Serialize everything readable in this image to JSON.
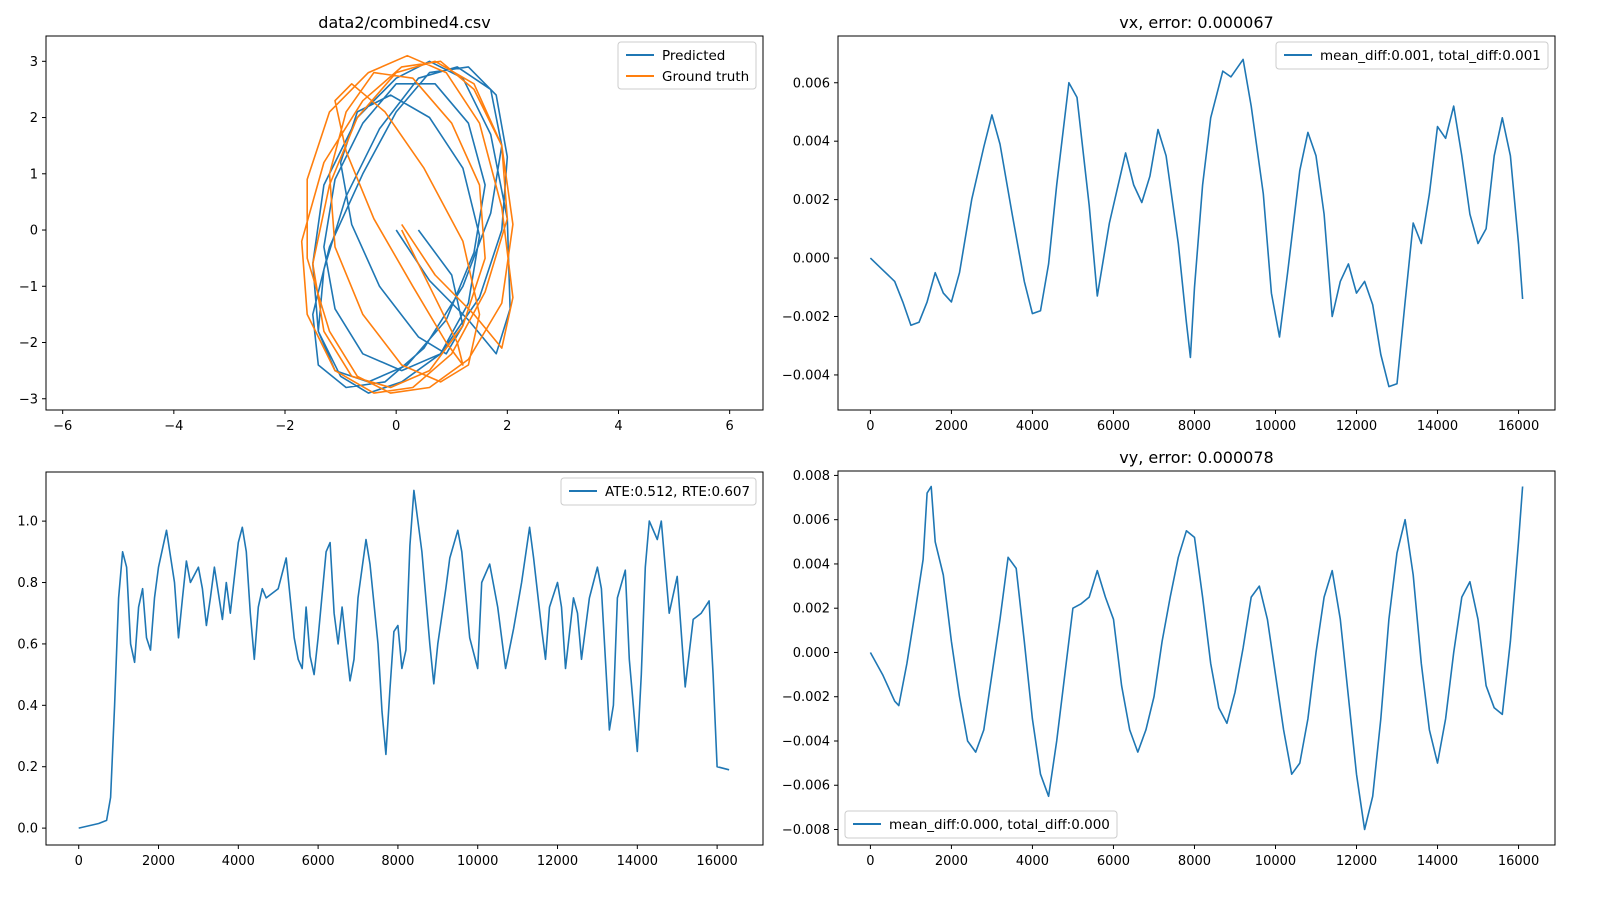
{
  "colors": {
    "blue": "#1f77b4",
    "orange": "#ff7f0e"
  },
  "chart_data": [
    {
      "type": "line",
      "title": "data2/combined4.csv",
      "xlim": [
        -6.3,
        6.6
      ],
      "ylim": [
        -3.2,
        3.45
      ],
      "xticks": [
        -6,
        -4,
        -2,
        0,
        2,
        4,
        6
      ],
      "yticks": [
        -3,
        -2,
        -1,
        0,
        1,
        2,
        3
      ],
      "legend_position": "top-right",
      "series": [
        {
          "name": "Predicted",
          "color": "#1f77b4",
          "x": [
            0.0,
            0.6,
            1.3,
            1.8,
            2.05,
            2.0,
            1.7,
            1.2,
            0.6,
            0.0,
            -0.7,
            -1.3,
            -1.5,
            -1.4,
            -1.0,
            -0.5,
            0.1,
            0.8,
            1.5,
            1.9,
            2.0,
            1.8,
            1.3,
            0.6,
            0.0,
            -0.6,
            -1.2,
            -1.5,
            -1.4,
            -0.9,
            -0.2,
            0.5,
            1.2,
            1.7,
            1.9,
            1.7,
            1.1,
            0.4,
            -0.3,
            -0.9,
            -1.3,
            -1.4,
            -1.1,
            -0.5,
            0.2,
            0.9,
            1.4,
            1.6,
            1.3,
            0.7,
            0.0,
            -0.6,
            -1.1,
            -1.3,
            -1.1,
            -0.6,
            0.1,
            0.8,
            1.3,
            1.5,
            1.2,
            0.6,
            -0.1,
            -0.7,
            -1.0,
            -0.8,
            -0.3,
            0.4,
            0.9,
            1.2,
            1.0,
            0.4
          ],
          "y": [
            0.0,
            -0.9,
            -1.6,
            -2.2,
            -1.4,
            0.2,
            1.7,
            2.7,
            3.0,
            2.7,
            2.0,
            0.8,
            -0.6,
            -1.8,
            -2.6,
            -2.9,
            -2.7,
            -2.2,
            -1.2,
            0.0,
            1.3,
            2.4,
            2.9,
            2.8,
            2.1,
            1.0,
            -0.3,
            -1.5,
            -2.4,
            -2.8,
            -2.7,
            -2.1,
            -1.0,
            0.3,
            1.5,
            2.5,
            2.9,
            2.7,
            1.8,
            0.6,
            -0.7,
            -1.8,
            -2.5,
            -2.7,
            -2.4,
            -1.6,
            -0.4,
            0.8,
            1.9,
            2.6,
            2.6,
            1.9,
            0.9,
            -0.3,
            -1.4,
            -2.2,
            -2.5,
            -2.2,
            -1.3,
            -0.1,
            1.1,
            2.0,
            2.4,
            2.1,
            1.2,
            0.1,
            -1.0,
            -1.9,
            -2.2,
            -1.7,
            -0.8,
            0.0
          ]
        },
        {
          "name": "Ground truth",
          "color": "#ff7f0e",
          "x": [
            0.1,
            0.7,
            1.4,
            1.9,
            2.1,
            1.9,
            1.5,
            0.9,
            0.2,
            -0.5,
            -1.2,
            -1.6,
            -1.6,
            -1.2,
            -0.7,
            -0.1,
            0.6,
            1.3,
            1.9,
            2.1,
            1.9,
            1.4,
            0.8,
            0.1,
            -0.6,
            -1.3,
            -1.7,
            -1.6,
            -1.1,
            -0.4,
            0.3,
            1.0,
            1.6,
            2.0,
            1.9,
            1.4,
            0.7,
            0.0,
            -0.7,
            -1.2,
            -1.5,
            -1.3,
            -0.8,
            -0.1,
            0.6,
            1.2,
            1.6,
            1.5,
            1.0,
            0.3,
            -0.4,
            -0.9,
            -1.2,
            -1.1,
            -0.6,
            0.1,
            0.8,
            1.3,
            1.5,
            1.2,
            0.5,
            -0.2,
            -0.8,
            -1.1,
            -0.9,
            -0.4,
            0.3,
            0.9,
            1.2,
            1.1,
            0.6,
            0.1
          ],
          "y": [
            0.1,
            -0.8,
            -1.5,
            -2.1,
            -1.2,
            0.4,
            1.9,
            2.8,
            3.1,
            2.8,
            2.1,
            0.9,
            -0.5,
            -1.8,
            -2.6,
            -2.9,
            -2.8,
            -2.3,
            -1.3,
            0.1,
            1.5,
            2.5,
            3.0,
            2.9,
            2.3,
            1.2,
            -0.2,
            -1.5,
            -2.5,
            -2.9,
            -2.8,
            -2.2,
            -1.1,
            0.2,
            1.5,
            2.6,
            3.0,
            2.8,
            2.0,
            0.8,
            -0.6,
            -1.8,
            -2.6,
            -2.8,
            -2.5,
            -1.7,
            -0.5,
            0.8,
            1.9,
            2.7,
            2.8,
            2.1,
            1.0,
            -0.3,
            -1.5,
            -2.4,
            -2.7,
            -2.4,
            -1.5,
            -0.2,
            1.1,
            2.1,
            2.6,
            2.3,
            1.4,
            0.2,
            -1.0,
            -2.0,
            -2.4,
            -2.0,
            -1.0,
            0.0
          ]
        }
      ]
    },
    {
      "type": "line",
      "title": "vx, error: 0.000067",
      "xlim": [
        -800,
        16900
      ],
      "ylim": [
        -0.0052,
        0.0076
      ],
      "xticks": [
        0,
        2000,
        4000,
        6000,
        8000,
        10000,
        12000,
        14000,
        16000
      ],
      "yticks": [
        -0.004,
        -0.002,
        0.0,
        0.002,
        0.004,
        0.006
      ],
      "ytick_labels": [
        "−0.004",
        "−0.002",
        "0.000",
        "0.002",
        "0.004",
        "0.006"
      ],
      "legend_position": "top-right",
      "series": [
        {
          "name": "mean_diff:0.001, total_diff:0.001",
          "color": "#1f77b4",
          "x": [
            0,
            300,
            600,
            800,
            1000,
            1200,
            1400,
            1600,
            1800,
            2000,
            2200,
            2500,
            2800,
            3000,
            3200,
            3500,
            3800,
            4000,
            4200,
            4400,
            4600,
            4900,
            5100,
            5400,
            5600,
            5900,
            6100,
            6300,
            6500,
            6700,
            6900,
            7100,
            7300,
            7600,
            7800,
            7900,
            8000,
            8200,
            8400,
            8700,
            8900,
            9200,
            9400,
            9700,
            9900,
            10100,
            10300,
            10600,
            10800,
            11000,
            11200,
            11400,
            11600,
            11800,
            12000,
            12200,
            12400,
            12600,
            12800,
            13000,
            13200,
            13400,
            13600,
            13800,
            14000,
            14200,
            14400,
            14600,
            14800,
            15000,
            15200,
            15400,
            15600,
            15800,
            16000,
            16100
          ],
          "y": [
            0.0,
            -0.0004,
            -0.0008,
            -0.0015,
            -0.0023,
            -0.0022,
            -0.0015,
            -0.0005,
            -0.0012,
            -0.0015,
            -0.0005,
            0.002,
            0.0038,
            0.0049,
            0.0039,
            0.0015,
            -0.0008,
            -0.0019,
            -0.0018,
            -0.0002,
            0.0025,
            0.006,
            0.0055,
            0.0018,
            -0.0013,
            0.0012,
            0.0024,
            0.0036,
            0.0025,
            0.0019,
            0.0028,
            0.0044,
            0.0035,
            0.0005,
            -0.0022,
            -0.0034,
            -0.001,
            0.0025,
            0.0048,
            0.0064,
            0.0062,
            0.0068,
            0.0052,
            0.0022,
            -0.0012,
            -0.0027,
            -0.0005,
            0.003,
            0.0043,
            0.0035,
            0.0015,
            -0.002,
            -0.0008,
            -0.0002,
            -0.0012,
            -0.0008,
            -0.0016,
            -0.0033,
            -0.0044,
            -0.0043,
            -0.0015,
            0.0012,
            0.0005,
            0.0022,
            0.0045,
            0.0041,
            0.0052,
            0.0035,
            0.0015,
            0.0005,
            0.001,
            0.0035,
            0.0048,
            0.0035,
            0.0005,
            -0.0014
          ]
        }
      ]
    },
    {
      "type": "line",
      "title": "",
      "xlim": [
        -820,
        17150
      ],
      "ylim": [
        -0.055,
        1.16
      ],
      "xticks": [
        0,
        2000,
        4000,
        6000,
        8000,
        10000,
        12000,
        14000,
        16000
      ],
      "yticks": [
        0.0,
        0.2,
        0.4,
        0.6,
        0.8,
        1.0
      ],
      "ytick_labels": [
        "0.0",
        "0.2",
        "0.4",
        "0.6",
        "0.8",
        "1.0"
      ],
      "legend_position": "top-right",
      "series": [
        {
          "name": "ATE:0.512, RTE:0.607",
          "color": "#1f77b4",
          "x": [
            0,
            500,
            700,
            800,
            900,
            1000,
            1100,
            1200,
            1300,
            1400,
            1500,
            1600,
            1700,
            1800,
            1900,
            2000,
            2200,
            2400,
            2500,
            2600,
            2700,
            2800,
            3000,
            3100,
            3200,
            3300,
            3400,
            3600,
            3700,
            3800,
            4000,
            4100,
            4200,
            4300,
            4400,
            4500,
            4600,
            4700,
            5000,
            5200,
            5400,
            5500,
            5600,
            5700,
            5800,
            5900,
            6000,
            6200,
            6300,
            6400,
            6500,
            6600,
            6700,
            6800,
            6900,
            7000,
            7200,
            7300,
            7500,
            7600,
            7700,
            7800,
            7900,
            8000,
            8100,
            8200,
            8300,
            8400,
            8600,
            8800,
            8900,
            9000,
            9200,
            9300,
            9500,
            9600,
            9800,
            10000,
            10100,
            10300,
            10500,
            10700,
            10900,
            11100,
            11300,
            11400,
            11600,
            11700,
            11800,
            12000,
            12100,
            12200,
            12400,
            12500,
            12600,
            12800,
            12900,
            13000,
            13100,
            13300,
            13400,
            13500,
            13700,
            13800,
            14000,
            14100,
            14200,
            14300,
            14500,
            14600,
            14800,
            15000,
            15100,
            15200,
            15400,
            15600,
            15800,
            15900,
            16000,
            16300
          ],
          "y": [
            0.0,
            0.015,
            0.025,
            0.1,
            0.4,
            0.75,
            0.9,
            0.85,
            0.6,
            0.54,
            0.72,
            0.78,
            0.62,
            0.58,
            0.75,
            0.85,
            0.97,
            0.8,
            0.62,
            0.75,
            0.87,
            0.8,
            0.85,
            0.78,
            0.66,
            0.75,
            0.85,
            0.68,
            0.8,
            0.7,
            0.93,
            0.98,
            0.9,
            0.7,
            0.55,
            0.72,
            0.78,
            0.75,
            0.78,
            0.88,
            0.62,
            0.55,
            0.52,
            0.72,
            0.56,
            0.5,
            0.62,
            0.9,
            0.93,
            0.7,
            0.6,
            0.72,
            0.6,
            0.48,
            0.55,
            0.75,
            0.94,
            0.86,
            0.6,
            0.38,
            0.24,
            0.45,
            0.64,
            0.66,
            0.52,
            0.58,
            0.92,
            1.1,
            0.9,
            0.6,
            0.47,
            0.6,
            0.78,
            0.88,
            0.97,
            0.9,
            0.62,
            0.52,
            0.8,
            0.86,
            0.72,
            0.52,
            0.65,
            0.8,
            0.98,
            0.88,
            0.65,
            0.55,
            0.72,
            0.8,
            0.72,
            0.52,
            0.75,
            0.7,
            0.55,
            0.75,
            0.8,
            0.85,
            0.78,
            0.32,
            0.4,
            0.75,
            0.84,
            0.55,
            0.25,
            0.5,
            0.85,
            1.0,
            0.94,
            1.0,
            0.7,
            0.82,
            0.64,
            0.46,
            0.68,
            0.7,
            0.74,
            0.5,
            0.2,
            0.19
          ]
        }
      ]
    },
    {
      "type": "line",
      "title": "vy, error: 0.000078",
      "xlim": [
        -800,
        16900
      ],
      "ylim": [
        -0.0087,
        0.0082
      ],
      "xticks": [
        0,
        2000,
        4000,
        6000,
        8000,
        10000,
        12000,
        14000,
        16000
      ],
      "yticks": [
        -0.008,
        -0.006,
        -0.004,
        -0.002,
        0.0,
        0.002,
        0.004,
        0.006,
        0.008
      ],
      "ytick_labels": [
        "−0.008",
        "−0.006",
        "−0.004",
        "−0.002",
        "0.000",
        "0.002",
        "0.004",
        "0.006",
        "0.008"
      ],
      "legend_position": "bottom-left",
      "series": [
        {
          "name": "mean_diff:0.000, total_diff:0.000",
          "color": "#1f77b4",
          "x": [
            0,
            300,
            600,
            700,
            900,
            1100,
            1300,
            1400,
            1500,
            1600,
            1800,
            2000,
            2200,
            2400,
            2600,
            2800,
            3000,
            3200,
            3400,
            3600,
            3800,
            4000,
            4200,
            4400,
            4600,
            4800,
            5000,
            5200,
            5400,
            5600,
            5800,
            6000,
            6200,
            6400,
            6600,
            6800,
            7000,
            7200,
            7400,
            7600,
            7800,
            8000,
            8200,
            8400,
            8600,
            8800,
            9000,
            9200,
            9400,
            9600,
            9800,
            10000,
            10200,
            10400,
            10600,
            10800,
            11000,
            11200,
            11400,
            11600,
            11800,
            12000,
            12200,
            12400,
            12600,
            12800,
            13000,
            13200,
            13400,
            13600,
            13800,
            14000,
            14200,
            14400,
            14600,
            14800,
            15000,
            15200,
            15400,
            15600,
            15800,
            16000,
            16100
          ],
          "y": [
            0.0,
            -0.001,
            -0.0022,
            -0.0024,
            -0.0005,
            0.0018,
            0.0042,
            0.0072,
            0.0075,
            0.005,
            0.0035,
            0.0005,
            -0.002,
            -0.004,
            -0.0045,
            -0.0035,
            -0.001,
            0.0015,
            0.0043,
            0.0038,
            0.0005,
            -0.003,
            -0.0055,
            -0.0065,
            -0.004,
            -0.001,
            0.002,
            0.0022,
            0.0025,
            0.0037,
            0.0025,
            0.0015,
            -0.0015,
            -0.0035,
            -0.0045,
            -0.0035,
            -0.002,
            0.0005,
            0.0025,
            0.0043,
            0.0055,
            0.0052,
            0.0025,
            -0.0005,
            -0.0025,
            -0.0032,
            -0.0018,
            0.0002,
            0.0025,
            0.003,
            0.0015,
            -0.001,
            -0.0035,
            -0.0055,
            -0.005,
            -0.003,
            0.0,
            0.0025,
            0.0037,
            0.0015,
            -0.002,
            -0.0055,
            -0.008,
            -0.0065,
            -0.003,
            0.0015,
            0.0045,
            0.006,
            0.0035,
            -0.0005,
            -0.0035,
            -0.005,
            -0.003,
            0.0,
            0.0025,
            0.0032,
            0.0015,
            -0.0015,
            -0.0025,
            -0.0028,
            0.0005,
            0.005,
            0.0075
          ]
        }
      ]
    }
  ]
}
